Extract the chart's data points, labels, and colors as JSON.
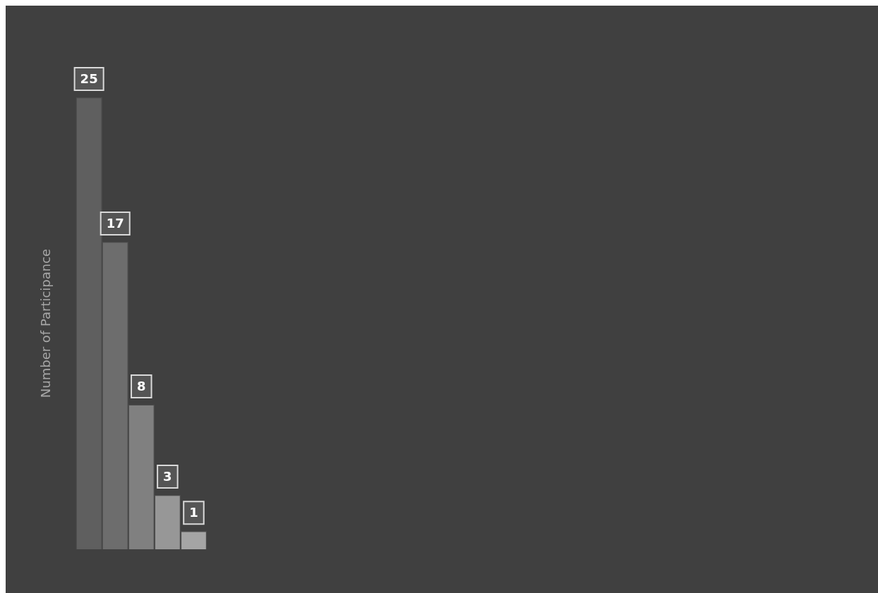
{
  "chart_data": {
    "type": "bar",
    "ylabel": "Number of Participance",
    "categories": [
      null,
      null,
      null,
      null,
      null
    ],
    "values": [
      25,
      17,
      8,
      3,
      1
    ],
    "colors": [
      "#5f5f5f",
      "#6d6d6d",
      "#808080",
      "#979797",
      "#a5a5a5"
    ],
    "data_labels": true
  }
}
